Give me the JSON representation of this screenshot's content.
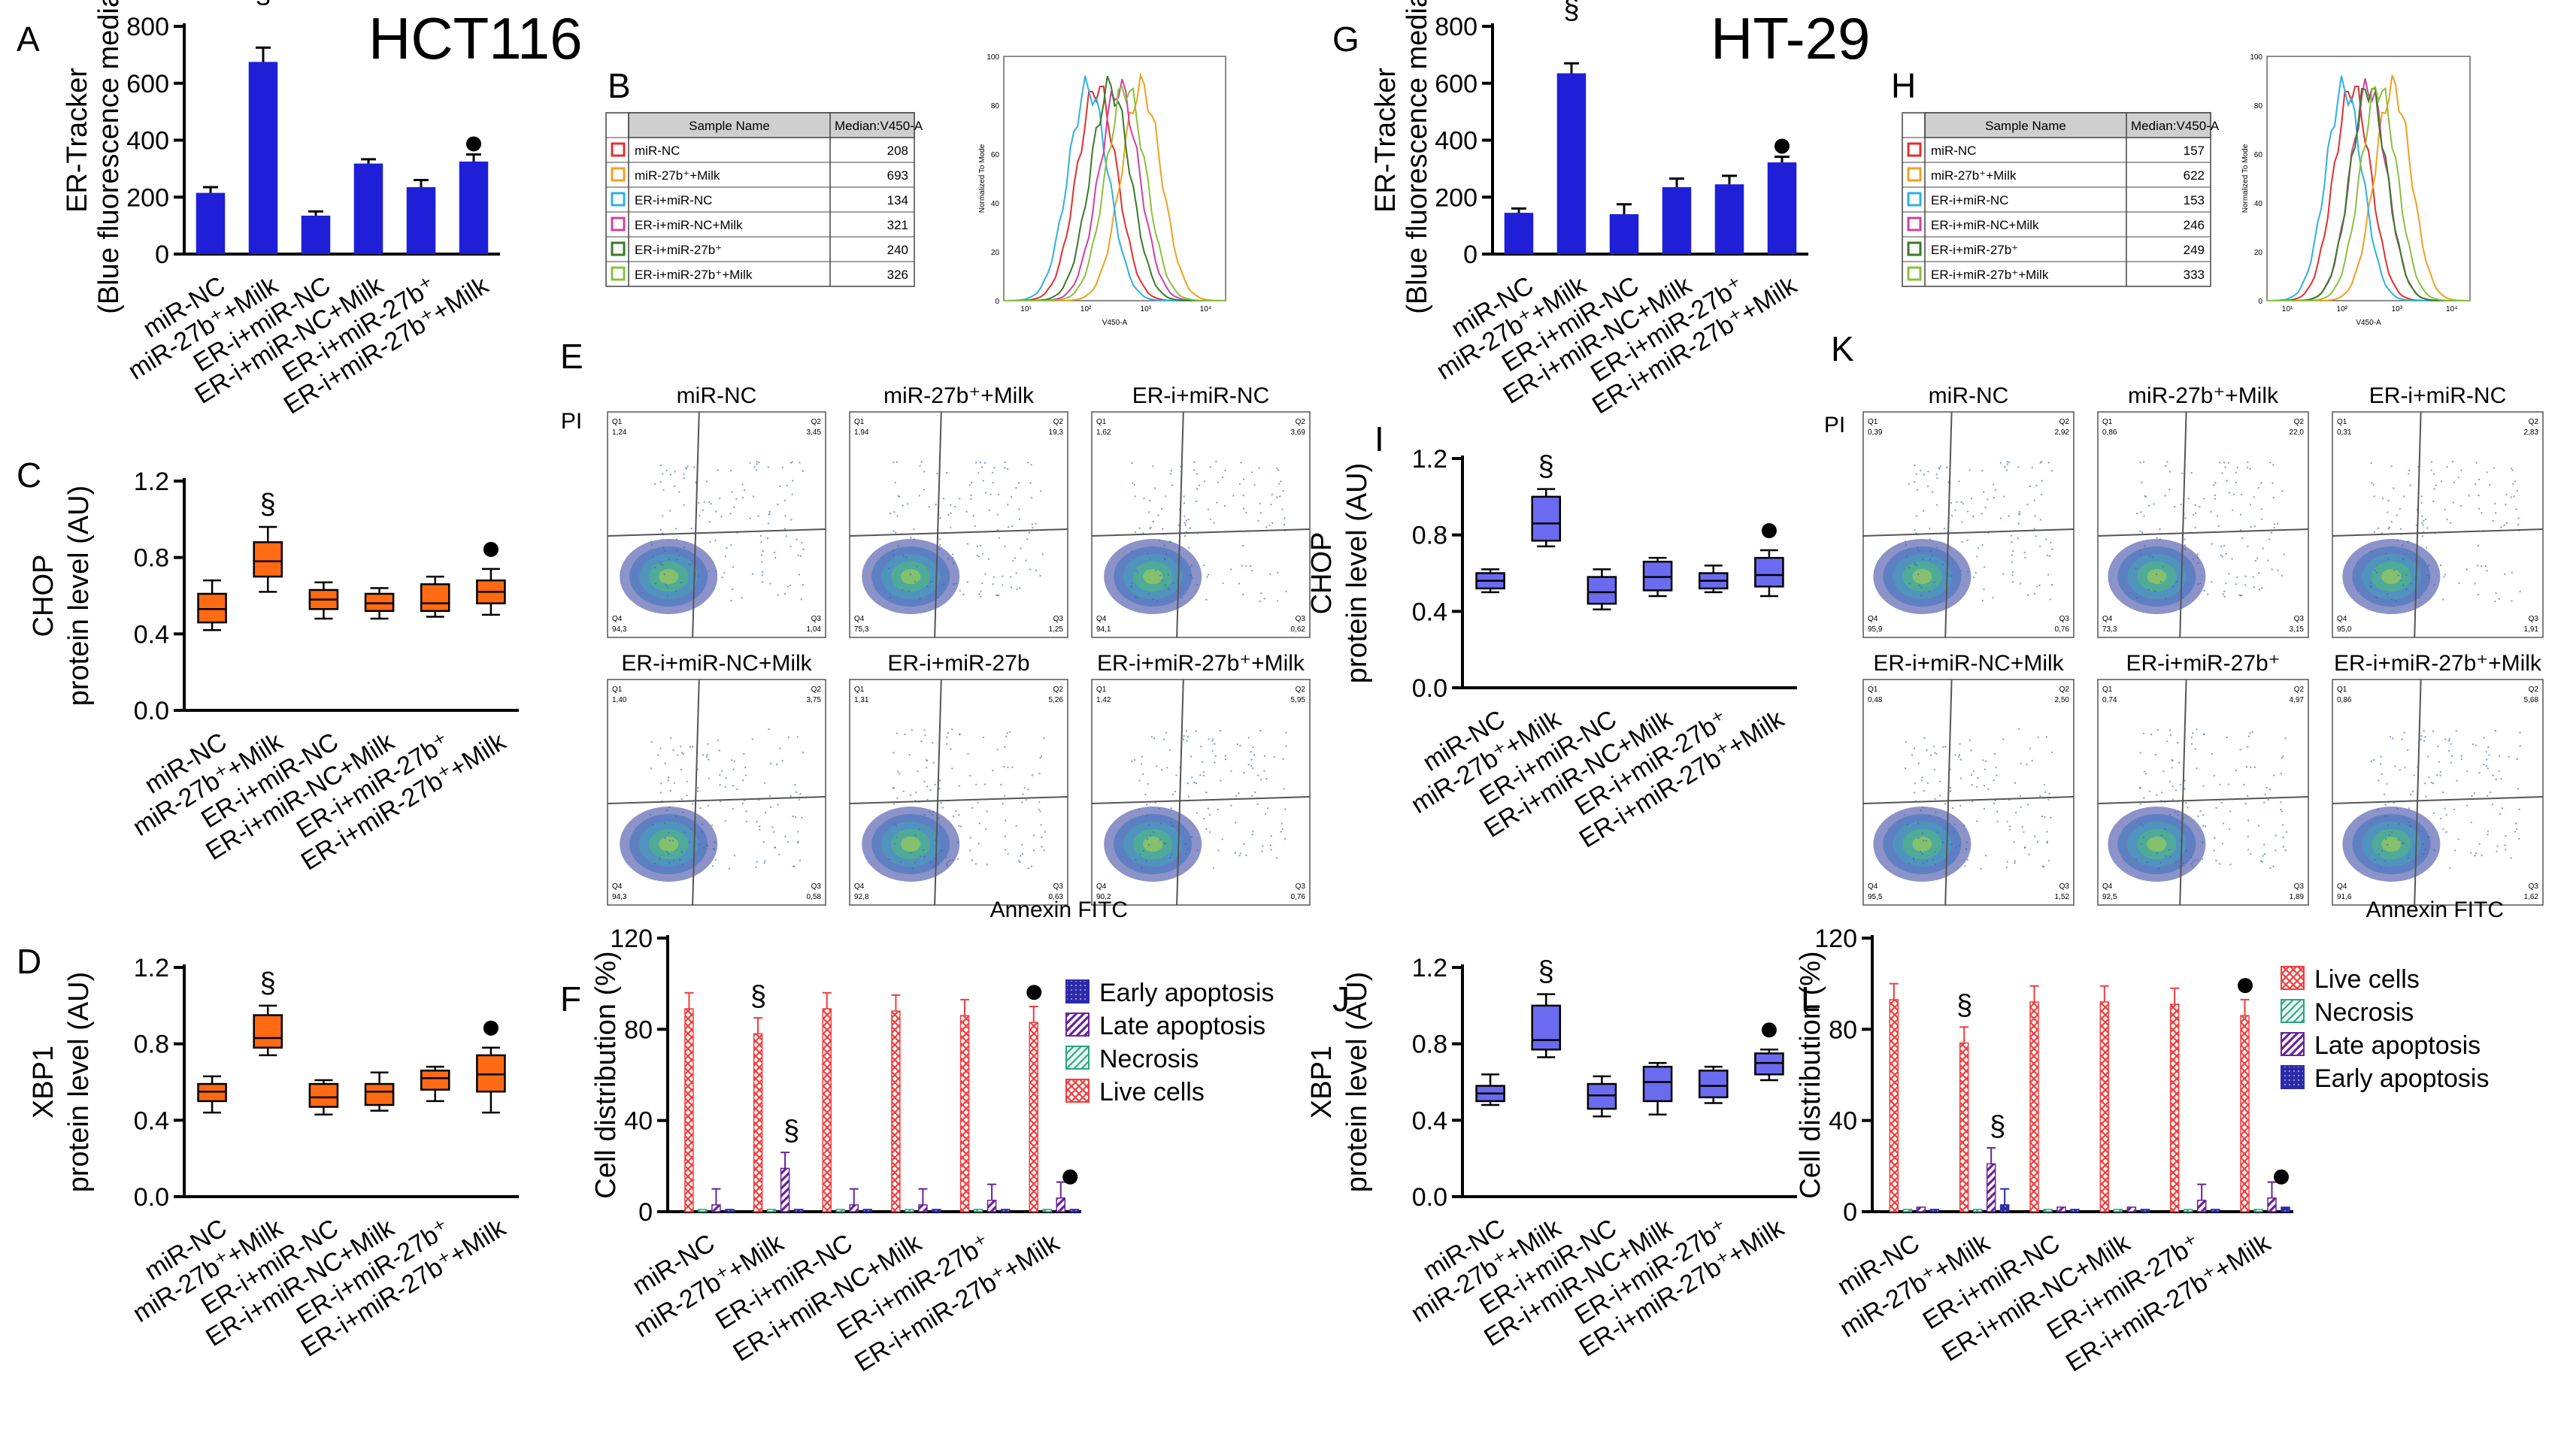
{
  "figure": {
    "cell_lines": [
      "HCT116",
      "HT-29"
    ],
    "panel_letters": [
      "A",
      "B",
      "C",
      "D",
      "E",
      "F",
      "G",
      "H",
      "I",
      "J",
      "K",
      "L"
    ]
  },
  "colors": {
    "bar_blue": "#1f1fd8",
    "box_orange": "#ff6a13",
    "box_purple": "#6b6bf0",
    "live": "#f23c3c",
    "necrosis": "#2aa57f",
    "late": "#6a2398",
    "early": "#2b2ba8"
  },
  "markers": {
    "significance_miR": "§",
    "significance_ER": "●"
  },
  "categories": [
    "miR-NC",
    "miR-27b⁺+Milk",
    "ER-i+miR-NC",
    "ER-i+miR-NC+Milk",
    "ER-i+miR-27b⁺",
    "ER-i+miR-27b⁺+Milk"
  ],
  "flow": {
    "axis_x": "Annexin FITC",
    "axis_y": "PI",
    "quadrants": [
      "Q1",
      "Q2",
      "Q3",
      "Q4"
    ],
    "panels_E": [
      {
        "title": "miR-NC",
        "q1": "1,24",
        "q2": "3,45",
        "q3": "1,04",
        "q4": "94,3"
      },
      {
        "title": "miR-27b⁺+Milk",
        "q1": "1,94",
        "q2": "19,3",
        "q3": "1,25",
        "q4": "75,3"
      },
      {
        "title": "ER-i+miR-NC",
        "q1": "1,62",
        "q2": "3,69",
        "q3": "0,62",
        "q4": "94,1"
      },
      {
        "title": "ER-i+miR-NC+Milk",
        "q1": "1,40",
        "q2": "3,75",
        "q3": "0,58",
        "q4": "94,3"
      },
      {
        "title": "ER-i+miR-27b",
        "q1": "1,31",
        "q2": "5,26",
        "q3": "0,63",
        "q4": "92,8"
      },
      {
        "title": "ER-i+miR-27b⁺+Milk",
        "q1": "1,42",
        "q2": "5,95",
        "q3": "0,76",
        "q4": "90,2"
      }
    ],
    "panels_K": [
      {
        "title": "miR-NC",
        "q1": "0,39",
        "q2": "2,92",
        "q3": "0,76",
        "q4": "95,9"
      },
      {
        "title": "miR-27b⁺+Milk",
        "q1": "0,86",
        "q2": "22,0",
        "q3": "3,15",
        "q4": "73,3"
      },
      {
        "title": "ER-i+miR-NC",
        "q1": "0,31",
        "q2": "2,83",
        "q3": "1,91",
        "q4": "95,0"
      },
      {
        "title": "ER-i+miR-NC+Milk",
        "q1": "0,48",
        "q2": "2,50",
        "q3": "1,52",
        "q4": "95,5"
      },
      {
        "title": "ER-i+miR-27b⁺",
        "q1": "0,74",
        "q2": "4,97",
        "q3": "1,89",
        "q4": "92,5"
      },
      {
        "title": "ER-i+miR-27b⁺+Milk",
        "q1": "0,86",
        "q2": "5,68",
        "q3": "1,62",
        "q4": "91,6"
      }
    ]
  },
  "tables": {
    "B": {
      "col1": "Sample Name",
      "col2": "Median:V450-A",
      "rows": [
        [
          "miR-NC",
          "208"
        ],
        [
          "miR-27b⁺+Milk",
          "693"
        ],
        [
          "ER-i+miR-NC",
          "134"
        ],
        [
          "ER-i+miR-NC+Milk",
          "321"
        ],
        [
          "ER-i+miR-27b⁺",
          "240"
        ],
        [
          "ER-i+miR-27b⁺+Milk",
          "326"
        ]
      ]
    },
    "H": {
      "col1": "Sample Name",
      "col2": "Median:V450-A",
      "rows": [
        [
          "miR-NC",
          "157"
        ],
        [
          "miR-27b⁺+Milk",
          "622"
        ],
        [
          "ER-i+miR-NC",
          "153"
        ],
        [
          "ER-i+miR-NC+Milk",
          "246"
        ],
        [
          "ER-i+miR-27b⁺",
          "249"
        ],
        [
          "ER-i+miR-27b⁺+Milk",
          "333"
        ]
      ]
    },
    "row_colors": [
      "#e03030",
      "#f0a020",
      "#30b0e0",
      "#d040a0",
      "#3a7a2a",
      "#8ac040"
    ]
  },
  "histogram": {
    "ylabel": "Normalized To Mode",
    "xlabel": "V450-A",
    "yticks": [
      "0",
      "20",
      "40",
      "60",
      "80",
      "100"
    ],
    "xticks": [
      "10¹",
      "10²",
      "10³",
      "10⁴"
    ]
  },
  "chart_data": [
    {
      "panel": "A",
      "type": "bar",
      "title": "HCT116",
      "ylabel": "ER-Tracker (Blue fluorescence median)",
      "ylim": [
        0,
        800
      ],
      "yticks": [
        0,
        200,
        400,
        600,
        800
      ],
      "values": [
        215,
        675,
        135,
        318,
        235,
        325
      ],
      "errors": [
        20,
        50,
        15,
        15,
        25,
        25
      ]
    },
    {
      "panel": "G",
      "type": "bar",
      "title": "HT-29",
      "ylabel": "ER-Tracker (Blue fluorescence median)",
      "ylim": [
        0,
        800
      ],
      "yticks": [
        0,
        200,
        400,
        600,
        800
      ],
      "values": [
        145,
        635,
        140,
        235,
        245,
        322
      ],
      "errors": [
        15,
        35,
        35,
        30,
        30,
        20
      ]
    },
    {
      "panel": "C",
      "type": "box",
      "ylabel": "CHOP protein level (AU)",
      "ylim": [
        0,
        1.2
      ],
      "yticks": [
        0.0,
        0.4,
        0.8,
        1.2
      ],
      "boxes": [
        [
          0.42,
          0.46,
          0.53,
          0.61,
          0.68
        ],
        [
          0.62,
          0.7,
          0.78,
          0.88,
          0.96
        ],
        [
          0.48,
          0.53,
          0.58,
          0.63,
          0.67
        ],
        [
          0.48,
          0.52,
          0.56,
          0.61,
          0.64
        ],
        [
          0.49,
          0.52,
          0.56,
          0.66,
          0.7
        ],
        [
          0.5,
          0.56,
          0.62,
          0.68,
          0.74
        ]
      ]
    },
    {
      "panel": "D",
      "type": "box",
      "ylabel": "XBP1 protein level (AU)",
      "ylim": [
        0,
        1.2
      ],
      "yticks": [
        0.0,
        0.4,
        0.8,
        1.2
      ],
      "boxes": [
        [
          0.44,
          0.5,
          0.55,
          0.59,
          0.63
        ],
        [
          0.74,
          0.78,
          0.83,
          0.95,
          1.0
        ],
        [
          0.43,
          0.47,
          0.52,
          0.59,
          0.61
        ],
        [
          0.45,
          0.48,
          0.55,
          0.59,
          0.65
        ],
        [
          0.5,
          0.56,
          0.62,
          0.66,
          0.68
        ],
        [
          0.44,
          0.55,
          0.64,
          0.74,
          0.78
        ]
      ]
    },
    {
      "panel": "I",
      "type": "box",
      "ylabel": "CHOP protein level (AU)",
      "ylim": [
        0,
        1.2
      ],
      "yticks": [
        0.0,
        0.4,
        0.8,
        1.2
      ],
      "boxes": [
        [
          0.5,
          0.52,
          0.56,
          0.6,
          0.62
        ],
        [
          0.74,
          0.77,
          0.86,
          1.0,
          1.04
        ],
        [
          0.41,
          0.44,
          0.5,
          0.58,
          0.62
        ],
        [
          0.48,
          0.51,
          0.58,
          0.66,
          0.68
        ],
        [
          0.5,
          0.52,
          0.56,
          0.6,
          0.64
        ],
        [
          0.48,
          0.53,
          0.59,
          0.68,
          0.72
        ]
      ]
    },
    {
      "panel": "J",
      "type": "box",
      "ylabel": "XBP1 protein level (AU)",
      "ylim": [
        0,
        1.2
      ],
      "yticks": [
        0.0,
        0.4,
        0.8,
        1.2
      ],
      "boxes": [
        [
          0.48,
          0.5,
          0.54,
          0.58,
          0.64
        ],
        [
          0.73,
          0.77,
          0.82,
          1.0,
          1.06
        ],
        [
          0.42,
          0.46,
          0.53,
          0.59,
          0.63
        ],
        [
          0.43,
          0.5,
          0.6,
          0.68,
          0.7
        ],
        [
          0.49,
          0.52,
          0.58,
          0.66,
          0.68
        ],
        [
          0.61,
          0.64,
          0.7,
          0.75,
          0.77
        ]
      ]
    },
    {
      "panel": "F",
      "type": "grouped-bar",
      "ylabel": "Cell distribution (%)",
      "ylim": [
        0,
        120
      ],
      "yticks": [
        0,
        40,
        80,
        120
      ],
      "series": [
        {
          "name": "Live cells",
          "values": [
            89,
            78,
            89,
            88,
            86,
            83
          ]
        },
        {
          "name": "Necrosis",
          "values": [
            1,
            1,
            1,
            1,
            1,
            1
          ]
        },
        {
          "name": "Late apoptosis",
          "values": [
            3,
            19,
            3,
            3,
            5,
            6
          ]
        },
        {
          "name": "Early apoptosis",
          "values": [
            1,
            1,
            1,
            1,
            1,
            1
          ]
        }
      ],
      "legend": [
        "Early apoptosis",
        "Late apoptosis",
        "Necrosis",
        "Live cells"
      ]
    },
    {
      "panel": "L",
      "type": "grouped-bar",
      "ylabel": "Cell distribution (%)",
      "ylim": [
        0,
        120
      ],
      "yticks": [
        0,
        40,
        80,
        120
      ],
      "series": [
        {
          "name": "Live cells",
          "values": [
            93,
            74,
            92,
            92,
            91,
            86
          ]
        },
        {
          "name": "Necrosis",
          "values": [
            1,
            1,
            1,
            1,
            1,
            1
          ]
        },
        {
          "name": "Late apoptosis",
          "values": [
            2,
            21,
            2,
            2,
            5,
            6
          ]
        },
        {
          "name": "Early apoptosis",
          "values": [
            1,
            3,
            1,
            1,
            1,
            2
          ]
        }
      ],
      "legend": [
        "Live cells",
        "Necrosis",
        "Late apoptosis",
        "Early apoptosis"
      ]
    }
  ]
}
